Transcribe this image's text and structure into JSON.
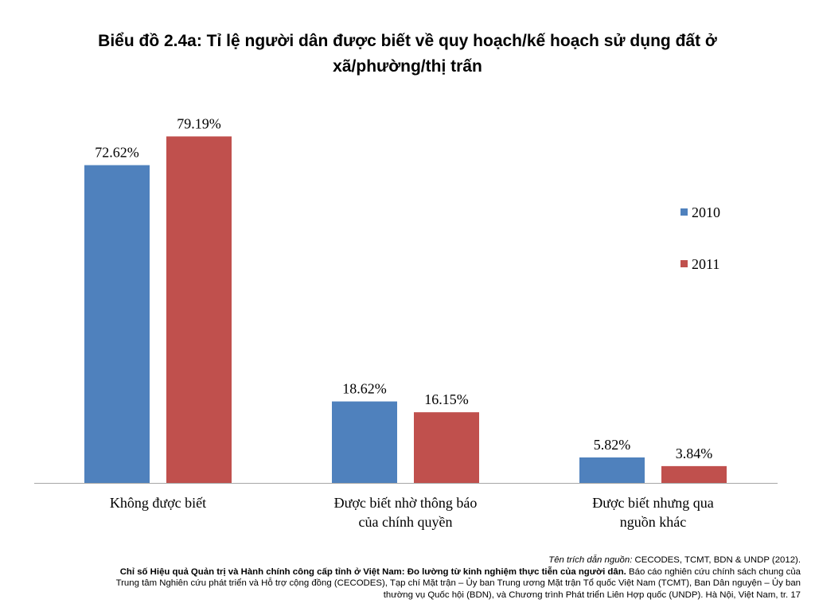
{
  "chart_data": {
    "type": "bar",
    "title": "Biểu đồ 2.4a: Tỉ lệ người dân được biết về quy hoạch/kế hoạch sử dụng đất ở xã/phường/thị trấn",
    "categories": [
      [
        "Không được biết"
      ],
      [
        "Được biết nhờ thông báo",
        "của chính quyền"
      ],
      [
        "Được biết nhưng qua",
        "nguồn khác"
      ]
    ],
    "series": [
      {
        "name": "2010",
        "color": "#4F81BD",
        "values": [
          72.62,
          18.62,
          5.82
        ],
        "labels": [
          "72.62%",
          "18.62%",
          "5.82%"
        ]
      },
      {
        "name": "2011",
        "color": "#C0504D",
        "values": [
          79.19,
          16.15,
          3.84
        ],
        "labels": [
          "79.19%",
          "16.15%",
          "3.84%"
        ]
      }
    ],
    "ylim": [
      0,
      80
    ],
    "grid": false,
    "legend_position": "right"
  },
  "source": {
    "label": "Tên trích dẫn nguồn:",
    "authors": " CECODES, TCMT, BDN & UNDP (2012).",
    "report_title": "Chỉ số Hiệu quả Quản trị và Hành chính công cấp tỉnh ở Việt Nam: Đo lường từ kinh nghiệm thực tiễn của người dân.",
    "line2_rest": " Báo cáo nghiên cứu chính sách chung của",
    "line3": "Trung tâm Nghiên cứu phát triển và Hỗ trợ cộng đồng (CECODES), Tạp chí Mặt trận – Ủy ban Trung ương Mặt trận Tổ quốc Việt Nam (TCMT), Ban Dân nguyện – Ủy ban",
    "line4": "thường vụ Quốc hội (BDN), và Chương trình Phát triển Liên Hợp quốc (UNDP). Hà Nội, Việt Nam, tr. 17"
  }
}
